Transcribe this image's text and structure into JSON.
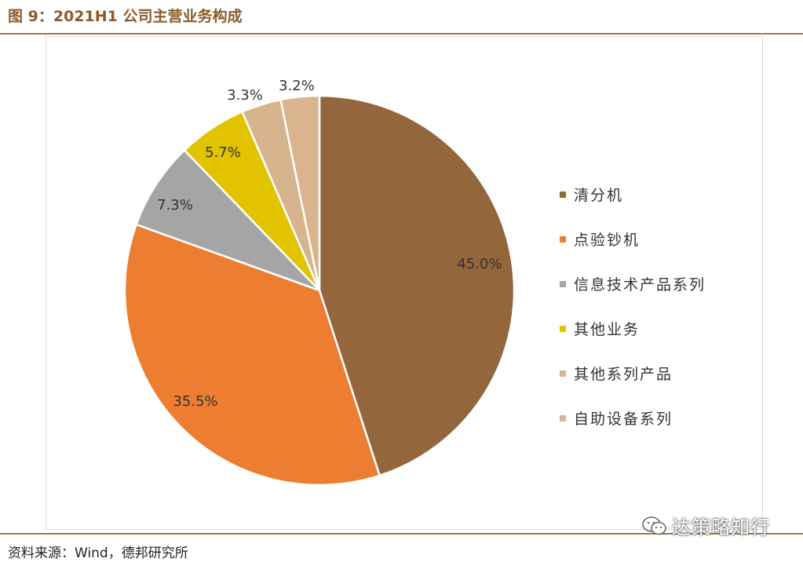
{
  "figure_title": "图 9：2021H1 公司主营业务构成",
  "source": "资料来源：Wind，德邦研究所",
  "watermark": "达策略知行",
  "chart_data": {
    "type": "pie",
    "title": "",
    "legend_position": "right",
    "start_angle_deg": 0,
    "direction": "clockwise",
    "slices": [
      {
        "name": "清分机",
        "value": 45.0,
        "label": "45.0%",
        "color": "#93663c"
      },
      {
        "name": "点验钞机",
        "value": 35.5,
        "label": "35.5%",
        "color": "#ed7d31"
      },
      {
        "name": "信息技术产品系列",
        "value": 7.3,
        "label": "7.3%",
        "color": "#a5a5a5"
      },
      {
        "name": "其他业务",
        "value": 5.7,
        "label": "5.7%",
        "color": "#e2c300"
      },
      {
        "name": "其他系列产品",
        "value": 3.3,
        "label": "3.3%",
        "color": "#d6b48e"
      },
      {
        "name": "自助设备系列",
        "value": 3.2,
        "label": "3.2%",
        "color": "#d9b48c"
      }
    ]
  }
}
